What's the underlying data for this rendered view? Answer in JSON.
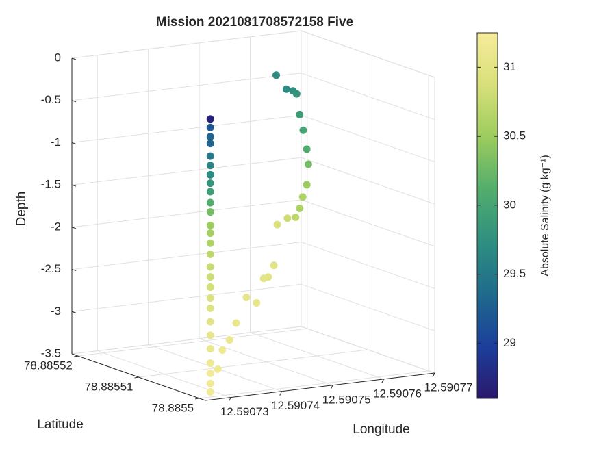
{
  "chart_data": {
    "type": "scatter3",
    "title": "Mission 2021081708572158 Five",
    "xlabel": "Longitude",
    "ylabel": "Latitude",
    "zlabel": "Depth",
    "colorbar_label": "Absolute Salinity (g kg⁻¹)",
    "xlim": [
      12.590725,
      12.59077
    ],
    "xticks": [
      12.59073,
      12.59074,
      12.59075,
      12.59076,
      12.59077
    ],
    "ylim": [
      78.885499,
      78.885521
    ],
    "yticks": [
      78.8855,
      78.88551,
      78.88552
    ],
    "zlim": [
      -3.5,
      0
    ],
    "zticks": [
      -3.5,
      -3,
      -2.5,
      -2,
      -1.5,
      -1,
      -0.5,
      0
    ],
    "clim": [
      28.6,
      31.25
    ],
    "cticks": [
      29,
      29.5,
      30,
      30.5,
      31
    ],
    "colormap": [
      "#2a186c",
      "#1c3f9c",
      "#1f6a8c",
      "#2e8f80",
      "#52ad6c",
      "#9ccc5e",
      "#d8e07a",
      "#f7ec9c"
    ],
    "grid": true,
    "x": [
      12.5907286,
      12.5907286,
      12.5907286,
      12.5907286,
      12.5907286,
      12.5907286,
      12.5907286,
      12.5907286,
      12.5907286,
      12.5907286,
      12.5907286,
      12.5907286,
      12.5907286,
      12.5907286,
      12.5907286,
      12.5907286,
      12.5907286,
      12.5907286,
      12.5907286,
      12.5907286,
      12.5907286,
      12.5907286,
      12.5907286,
      12.5907286,
      12.5907286,
      12.5907286,
      12.5907286,
      12.590752,
      12.590754,
      12.5907553,
      12.590756,
      12.5907566,
      12.5907573,
      12.590758,
      12.5907583,
      12.590758,
      12.5907572,
      12.5907566,
      12.5907558,
      12.5907542,
      12.5907522,
      12.5907463,
      12.5907452,
      12.5907443,
      12.5907409,
      12.5907429,
      12.5907389,
      12.5907376,
      12.5907362,
      12.5907353
    ],
    "y": [
      78.8855012,
      78.8855012,
      78.8855012,
      78.8855012,
      78.8855012,
      78.8855012,
      78.8855012,
      78.8855012,
      78.8855012,
      78.8855012,
      78.8855012,
      78.8855012,
      78.8855012,
      78.8855012,
      78.8855012,
      78.8855012,
      78.8855012,
      78.8855012,
      78.8855012,
      78.8855012,
      78.8855012,
      78.8855012,
      78.8855012,
      78.8855012,
      78.8855012,
      78.8855012,
      78.8855012,
      78.88551,
      78.88551,
      78.88551,
      78.88551,
      78.88551,
      78.88551,
      78.88551,
      78.88551,
      78.88551,
      78.88551,
      78.88551,
      78.88551,
      78.88551,
      78.88551,
      78.8855056,
      78.8855056,
      78.8855056,
      78.8855056,
      78.8855056,
      78.8855056,
      78.8855056,
      78.8855056,
      78.8855056
    ],
    "z": [
      -0.25,
      -0.35,
      -0.46,
      -0.54,
      -0.69,
      -0.8,
      -0.91,
      -1.01,
      -1.11,
      -1.24,
      -1.35,
      -1.51,
      -1.6,
      -1.72,
      -1.85,
      -2,
      -2.12,
      -2.24,
      -2.37,
      -2.49,
      -2.65,
      -2.81,
      -2.97,
      -3.14,
      -3.26,
      -3.38,
      -3.48,
      -0.12,
      -0.3,
      -0.33,
      -0.37,
      -0.62,
      -0.81,
      -1.04,
      -1.22,
      -1.46,
      -1.6,
      -1.73,
      -1.83,
      -1.83,
      -1.89,
      -2.22,
      -2.35,
      -2.36,
      -2.56,
      -2.64,
      -2.85,
      -3.04,
      -3.15,
      -3.37
    ],
    "c": [
      28.7,
      29.2,
      29.3,
      29.3,
      29.5,
      29.6,
      29.7,
      29.8,
      29.9,
      30.1,
      30.3,
      30.5,
      30.55,
      30.6,
      30.7,
      30.75,
      30.8,
      30.85,
      30.9,
      30.95,
      31,
      31.05,
      31.1,
      31.15,
      31.2,
      31.2,
      31.2,
      29.7,
      29.7,
      29.75,
      29.8,
      29.9,
      30,
      30.1,
      30.3,
      30.5,
      30.6,
      30.6,
      30.7,
      30.8,
      30.9,
      31,
      31,
      31,
      31.05,
      31.05,
      31.1,
      31.1,
      31.15,
      31.15
    ]
  }
}
